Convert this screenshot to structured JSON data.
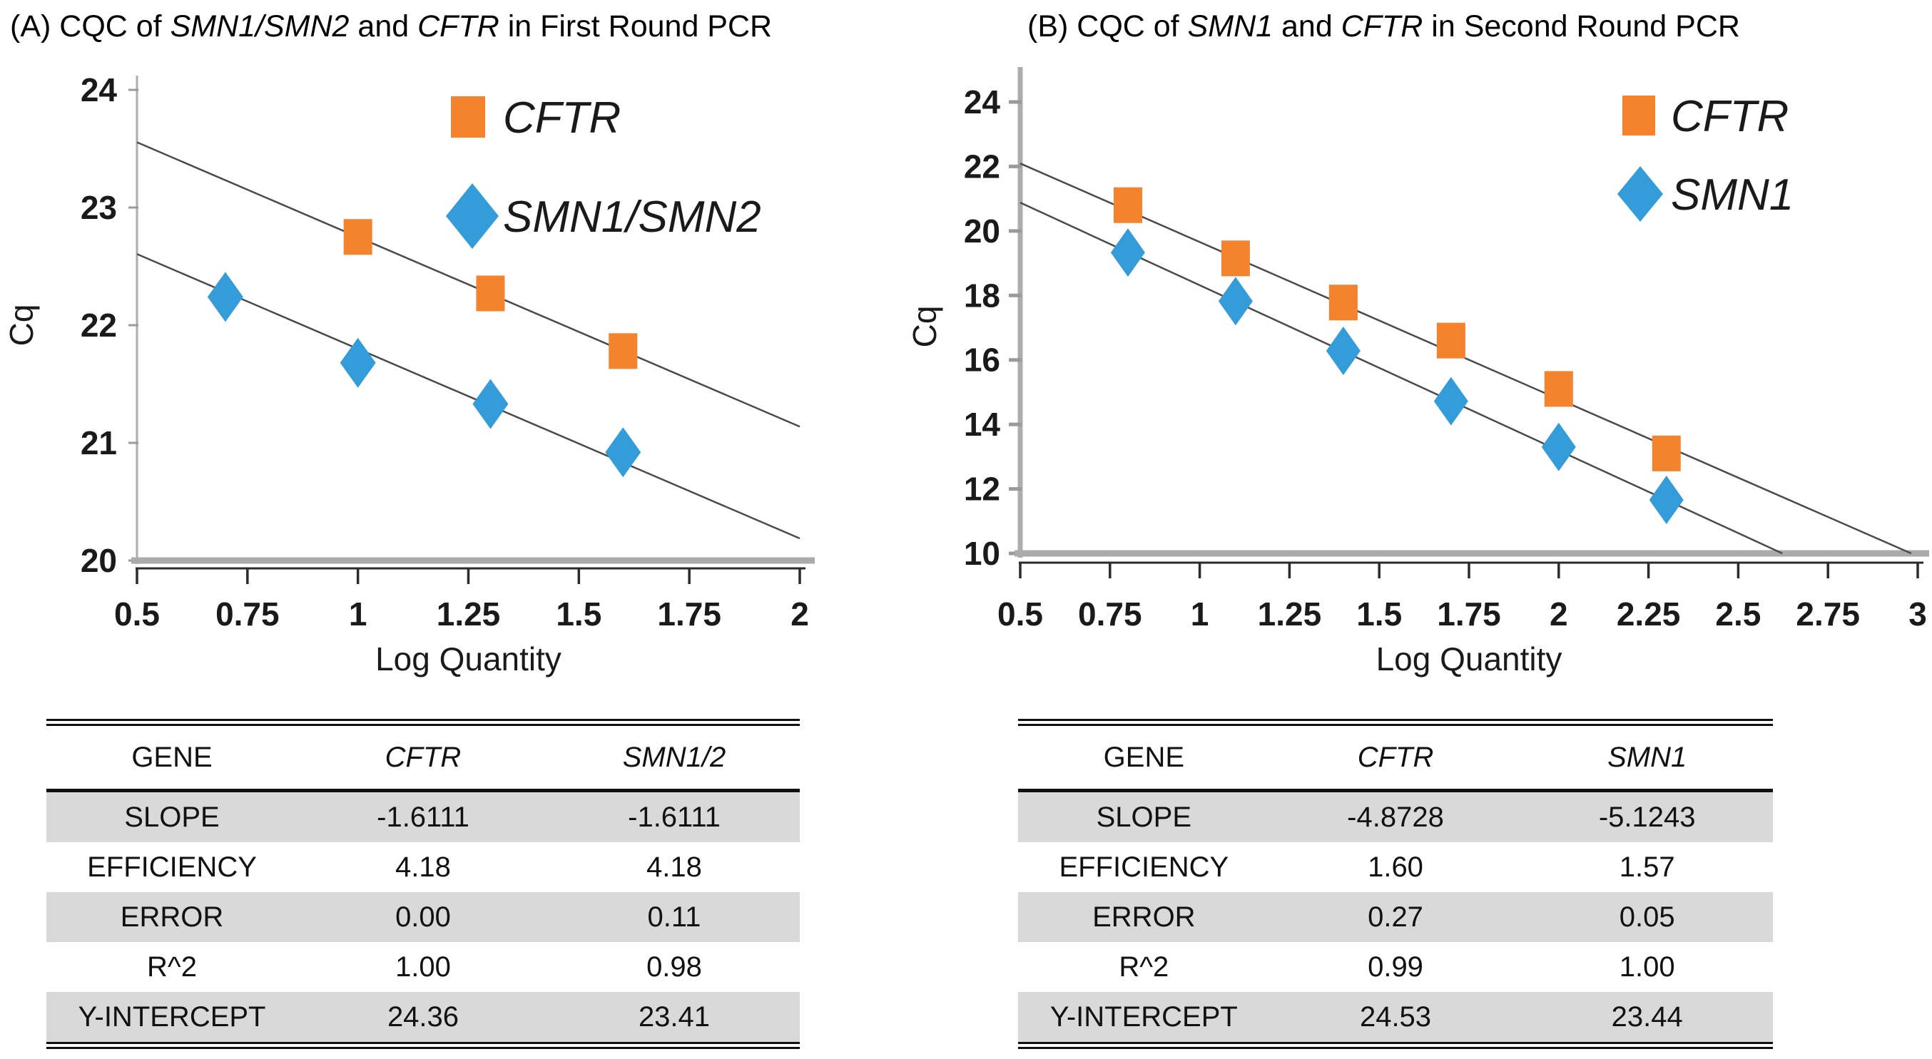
{
  "colors": {
    "cftr_orange": "#F5822D",
    "smn_blue": "#339CD9",
    "trendline_gray": "#4A4A4A",
    "axis_gray": "#A6A6A6",
    "table_shade": "#D9D9D9"
  },
  "panels": [
    {
      "title": {
        "parts": [
          "(A) CQC of ",
          "SMN1/SMN2",
          " and ",
          "CFTR",
          " in First Round PCR"
        ]
      },
      "table": {
        "headers": [
          "GENE",
          "CFTR",
          "SMN1/2"
        ],
        "rows": [
          [
            "SLOPE",
            "-1.6111",
            "-1.6111"
          ],
          [
            "EFFICIENCY",
            "4.18",
            "4.18"
          ],
          [
            "ERROR",
            "0.00",
            "0.11"
          ],
          [
            "R^2",
            "1.00",
            "0.98"
          ],
          [
            "Y-INTERCEPT",
            "24.36",
            "23.41"
          ]
        ]
      }
    },
    {
      "title": {
        "parts": [
          "(B) CQC of ",
          "SMN1",
          " and ",
          "CFTR",
          " in Second Round PCR"
        ]
      },
      "table": {
        "headers": [
          "GENE",
          "CFTR",
          "SMN1"
        ],
        "rows": [
          [
            "SLOPE",
            "-4.8728",
            "-5.1243"
          ],
          [
            "EFFICIENCY",
            "1.60",
            "1.57"
          ],
          [
            "ERROR",
            "0.27",
            "0.05"
          ],
          [
            "R^2",
            "0.99",
            "1.00"
          ],
          [
            "Y-INTERCEPT",
            "24.53",
            "23.44"
          ]
        ]
      }
    }
  ],
  "chart_data": [
    {
      "type": "scatter",
      "title": "(A) CQC of SMN1/SMN2 and CFTR in First Round PCR",
      "xlabel": "Log Quantity",
      "ylabel": "Cq",
      "xlim": [
        0.5,
        2
      ],
      "ylim": [
        20,
        24
      ],
      "xticks": [
        "0.5",
        "0.75",
        "1",
        "1.25",
        "1.5",
        "1.75",
        "2"
      ],
      "yticks": [
        "20",
        "21",
        "22",
        "23",
        "24"
      ],
      "grid": false,
      "legend_position": "top-right-inside",
      "series": [
        {
          "name": "CFTR",
          "marker": "square",
          "color": "#F5822D",
          "points": [
            [
              1.0,
              22.75
            ],
            [
              1.3,
              22.27
            ],
            [
              1.6,
              21.78
            ]
          ],
          "trendline": {
            "slope": -1.6111,
            "intercept": 24.36
          }
        },
        {
          "name": "SMN1/SMN2",
          "marker": "diamond",
          "color": "#339CD9",
          "points": [
            [
              0.7,
              22.24
            ],
            [
              1.0,
              21.68
            ],
            [
              1.3,
              21.33
            ],
            [
              1.6,
              20.92
            ]
          ],
          "trendline": {
            "slope": -1.6111,
            "intercept": 23.41
          }
        }
      ]
    },
    {
      "type": "scatter",
      "title": "(B) CQC of SMN1 and CFTR in Second Round PCR",
      "xlabel": "Log Quantity",
      "ylabel": "Cq",
      "xlim": [
        0.5,
        3
      ],
      "ylim": [
        10,
        24
      ],
      "xticks": [
        "0.5",
        "0.75",
        "1",
        "1.25",
        "1.5",
        "1.75",
        "2",
        "2.25",
        "2.5",
        "2.75",
        "3"
      ],
      "yticks": [
        "10",
        "12",
        "14",
        "16",
        "18",
        "20",
        "22",
        "24"
      ],
      "grid": false,
      "legend_position": "top-right-inside",
      "series": [
        {
          "name": "CFTR",
          "marker": "square",
          "color": "#F5822D",
          "points": [
            [
              0.8,
              20.8
            ],
            [
              1.1,
              19.15
            ],
            [
              1.4,
              17.78
            ],
            [
              1.7,
              16.6
            ],
            [
              2.0,
              15.1
            ],
            [
              2.3,
              13.1
            ]
          ],
          "trendline": {
            "slope": -4.8728,
            "intercept": 24.53
          }
        },
        {
          "name": "SMN1",
          "marker": "diamond",
          "color": "#339CD9",
          "points": [
            [
              0.8,
              19.33
            ],
            [
              1.1,
              17.82
            ],
            [
              1.4,
              16.28
            ],
            [
              1.7,
              14.72
            ],
            [
              2.0,
              13.3
            ],
            [
              2.3,
              11.66
            ]
          ],
          "trendline": {
            "slope": -5.1243,
            "intercept": 23.44
          }
        }
      ]
    }
  ]
}
